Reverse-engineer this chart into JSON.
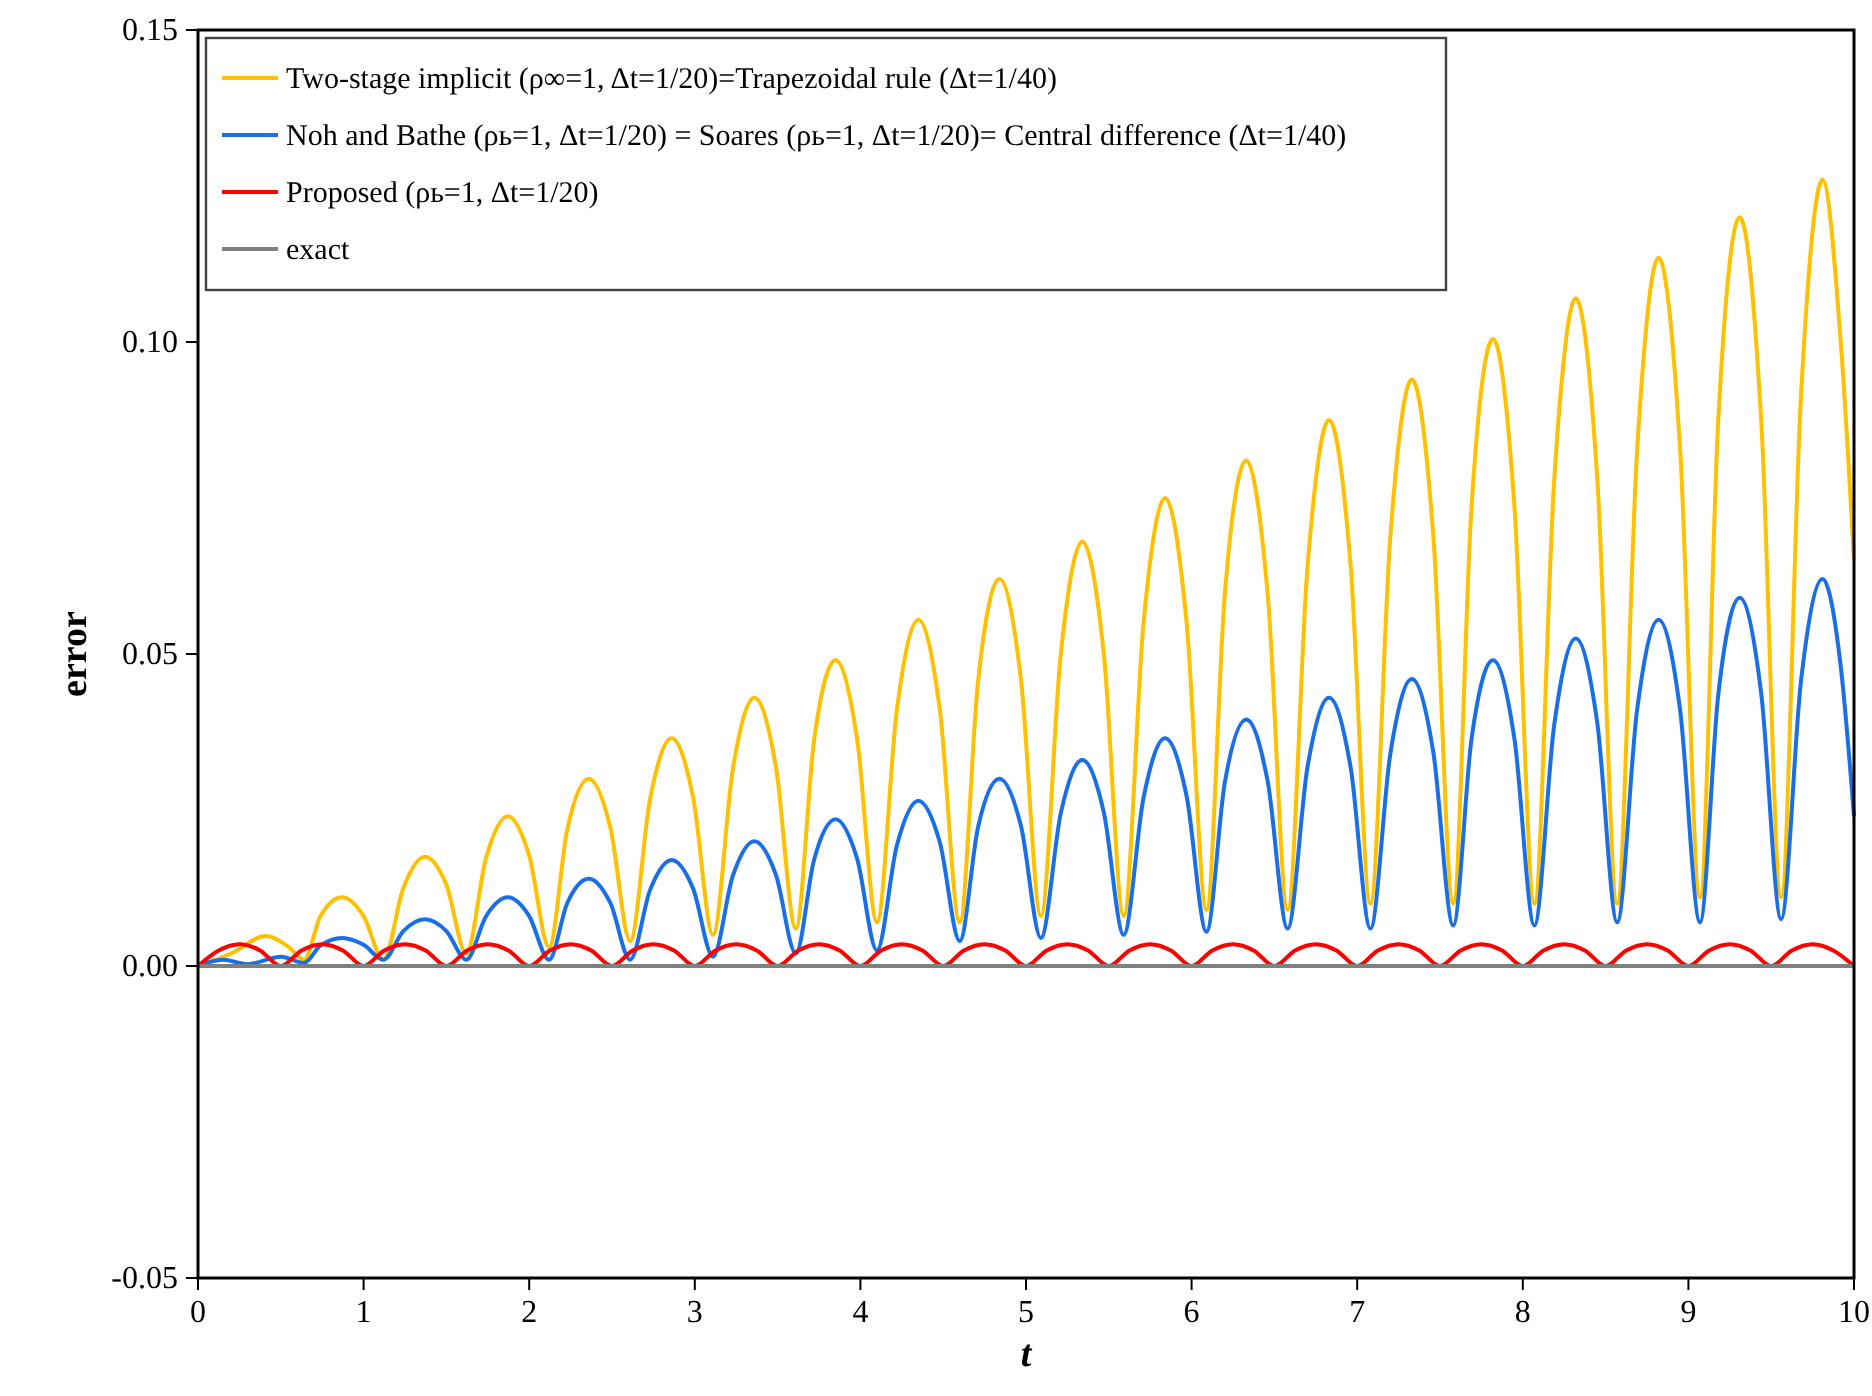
{
  "chart_data": {
    "type": "line",
    "xlabel": "t",
    "ylabel": "error",
    "xlim": [
      0,
      10
    ],
    "ylim": [
      -0.05,
      0.15
    ],
    "xticks": [
      0,
      1,
      2,
      3,
      4,
      5,
      6,
      7,
      8,
      9,
      10
    ],
    "yticks": [
      {
        "value": -0.05,
        "label": "-0.05"
      },
      {
        "value": 0,
        "label": "0.00"
      },
      {
        "value": 0.05,
        "label": "0.05"
      },
      {
        "value": 0.1,
        "label": "0.10"
      },
      {
        "value": 0.15,
        "label": "0.15"
      }
    ],
    "legend": "top left",
    "series": [
      {
        "name": "Two-stage implicit (ρ∞=1, Δt=1/20)=Trapezoidal rule (Δt=1/40)",
        "color": "#ffc000",
        "x": [
          0,
          0.2,
          0.41,
          0.55,
          0.64,
          0.74,
          0.87,
          1.0,
          1.12,
          1.24,
          1.37,
          1.5,
          1.62,
          1.74,
          1.87,
          2.0,
          2.12,
          2.23,
          2.36,
          2.49,
          2.61,
          2.73,
          2.86,
          2.99,
          3.11,
          3.23,
          3.36,
          3.49,
          3.61,
          3.72,
          3.85,
          3.98,
          4.1,
          4.22,
          4.35,
          4.48,
          4.6,
          4.71,
          4.84,
          4.97,
          5.09,
          5.21,
          5.34,
          5.47,
          5.59,
          5.71,
          5.84,
          5.97,
          6.09,
          6.2,
          6.33,
          6.46,
          6.58,
          6.7,
          6.83,
          6.96,
          7.08,
          7.2,
          7.33,
          7.46,
          7.58,
          7.69,
          7.82,
          7.95,
          8.07,
          8.19,
          8.32,
          8.45,
          8.57,
          8.69,
          8.82,
          8.95,
          9.07,
          9.18,
          9.31,
          9.44,
          9.56,
          9.68,
          9.81,
          9.92,
          10
        ],
        "values": [
          0,
          0.002,
          0.0048,
          0.003,
          0.001,
          0.008,
          0.011,
          0.008,
          0.001,
          0.0125,
          0.0175,
          0.013,
          0.002,
          0.0174,
          0.024,
          0.0177,
          0.003,
          0.0219,
          0.03,
          0.0222,
          0.004,
          0.0268,
          0.0365,
          0.027,
          0.005,
          0.0316,
          0.043,
          0.0319,
          0.006,
          0.0361,
          0.049,
          0.0364,
          0.007,
          0.041,
          0.0555,
          0.041,
          0.007,
          0.0455,
          0.062,
          0.0458,
          0.008,
          0.05,
          0.068,
          0.05,
          0.008,
          0.055,
          0.075,
          0.055,
          0.009,
          0.0594,
          0.081,
          0.0594,
          0.009,
          0.064,
          0.0875,
          0.0643,
          0.01,
          0.0688,
          0.094,
          0.0688,
          0.01,
          0.0734,
          0.1005,
          0.0734,
          0.01,
          0.078,
          0.107,
          0.078,
          0.01,
          0.0825,
          0.1135,
          0.0828,
          0.011,
          0.0873,
          0.12,
          0.0873,
          0.011,
          0.0915,
          0.126,
          0.1,
          0.065
        ]
      },
      {
        "name": "Noh and Bathe (ρь=1, Δt=1/20) = Soares (ρь=1, Δt=1/20)= Central difference (Δt=1/40)",
        "color": "#1a6fe6",
        "x": [
          0,
          0.15,
          0.3,
          0.5,
          0.64,
          0.74,
          0.87,
          1.0,
          1.12,
          1.24,
          1.37,
          1.5,
          1.62,
          1.74,
          1.87,
          2.0,
          2.12,
          2.23,
          2.36,
          2.49,
          2.61,
          2.73,
          2.86,
          2.99,
          3.11,
          3.23,
          3.36,
          3.49,
          3.61,
          3.72,
          3.85,
          3.98,
          4.1,
          4.22,
          4.35,
          4.48,
          4.6,
          4.71,
          4.84,
          4.97,
          5.09,
          5.21,
          5.34,
          5.47,
          5.59,
          5.71,
          5.84,
          5.97,
          6.09,
          6.2,
          6.33,
          6.46,
          6.58,
          6.7,
          6.83,
          6.96,
          7.08,
          7.2,
          7.33,
          7.46,
          7.58,
          7.69,
          7.82,
          7.95,
          8.07,
          8.19,
          8.32,
          8.45,
          8.57,
          8.69,
          8.82,
          8.95,
          9.07,
          9.18,
          9.31,
          9.44,
          9.56,
          9.68,
          9.81,
          9.92,
          10
        ],
        "values": [
          0,
          0.001,
          0.0003,
          0.0015,
          0.0005,
          0.0033,
          0.0045,
          0.0034,
          0.001,
          0.0056,
          0.0075,
          0.0056,
          0.001,
          0.008,
          0.011,
          0.008,
          0.001,
          0.0101,
          0.014,
          0.0101,
          0.001,
          0.0122,
          0.017,
          0.0124,
          0.0015,
          0.0145,
          0.02,
          0.0146,
          0.002,
          0.017,
          0.0235,
          0.0172,
          0.0025,
          0.0193,
          0.0265,
          0.0198,
          0.004,
          0.0222,
          0.03,
          0.0224,
          0.0045,
          0.0245,
          0.033,
          0.0246,
          0.005,
          0.027,
          0.0365,
          0.0272,
          0.0055,
          0.0293,
          0.0395,
          0.0295,
          0.006,
          0.0319,
          0.043,
          0.0319,
          0.006,
          0.034,
          0.046,
          0.0342,
          0.0065,
          0.0363,
          0.049,
          0.0363,
          0.0065,
          0.0387,
          0.0525,
          0.0389,
          0.007,
          0.041,
          0.0555,
          0.041,
          0.007,
          0.0434,
          0.059,
          0.0436,
          0.0075,
          0.0457,
          0.062,
          0.048,
          0.024
        ]
      },
      {
        "name": "Proposed (ρь=1, Δt=1/20)",
        "color": "#ff0000",
        "x": [
          0,
          0.125,
          0.25,
          0.375,
          0.5,
          0.625,
          0.75,
          0.875,
          1,
          1.125,
          1.25,
          1.375,
          1.5,
          1.625,
          1.75,
          1.875,
          2,
          2.125,
          2.25,
          2.375,
          2.5,
          2.625,
          2.75,
          2.875,
          3,
          3.125,
          3.25,
          3.375,
          3.5,
          3.625,
          3.75,
          3.875,
          4,
          4.125,
          4.25,
          4.375,
          4.5,
          4.625,
          4.75,
          4.875,
          5,
          5.125,
          5.25,
          5.375,
          5.5,
          5.625,
          5.75,
          5.875,
          6,
          6.125,
          6.25,
          6.375,
          6.5,
          6.625,
          6.75,
          6.875,
          7,
          7.125,
          7.25,
          7.375,
          7.5,
          7.625,
          7.75,
          7.875,
          8,
          8.125,
          8.25,
          8.375,
          8.5,
          8.625,
          8.75,
          8.875,
          9,
          9.125,
          9.25,
          9.375,
          9.5,
          9.625,
          9.75,
          9.875,
          10
        ],
        "values": [
          0,
          0.0025,
          0.0035,
          0.0025,
          0,
          0.0025,
          0.0035,
          0.0025,
          0,
          0.0025,
          0.0035,
          0.0025,
          0,
          0.0025,
          0.0035,
          0.0025,
          0,
          0.0025,
          0.0035,
          0.0025,
          0,
          0.0025,
          0.0035,
          0.0025,
          0,
          0.0025,
          0.0035,
          0.0025,
          0,
          0.0025,
          0.0035,
          0.0025,
          0,
          0.0025,
          0.0035,
          0.0025,
          0,
          0.0025,
          0.0035,
          0.0025,
          0,
          0.0025,
          0.0035,
          0.0025,
          0,
          0.0025,
          0.0035,
          0.0025,
          0,
          0.0025,
          0.0035,
          0.0025,
          0,
          0.0025,
          0.0035,
          0.0025,
          0,
          0.0025,
          0.0035,
          0.0025,
          0,
          0.0025,
          0.0035,
          0.0025,
          0,
          0.0025,
          0.0035,
          0.0025,
          0,
          0.0025,
          0.0035,
          0.0025,
          0,
          0.0025,
          0.0035,
          0.0025,
          0,
          0.0025,
          0.0035,
          0.0025,
          0
        ]
      },
      {
        "name": "exact",
        "color": "#808080",
        "x": [
          0,
          10
        ],
        "values": [
          0,
          0
        ]
      }
    ]
  }
}
